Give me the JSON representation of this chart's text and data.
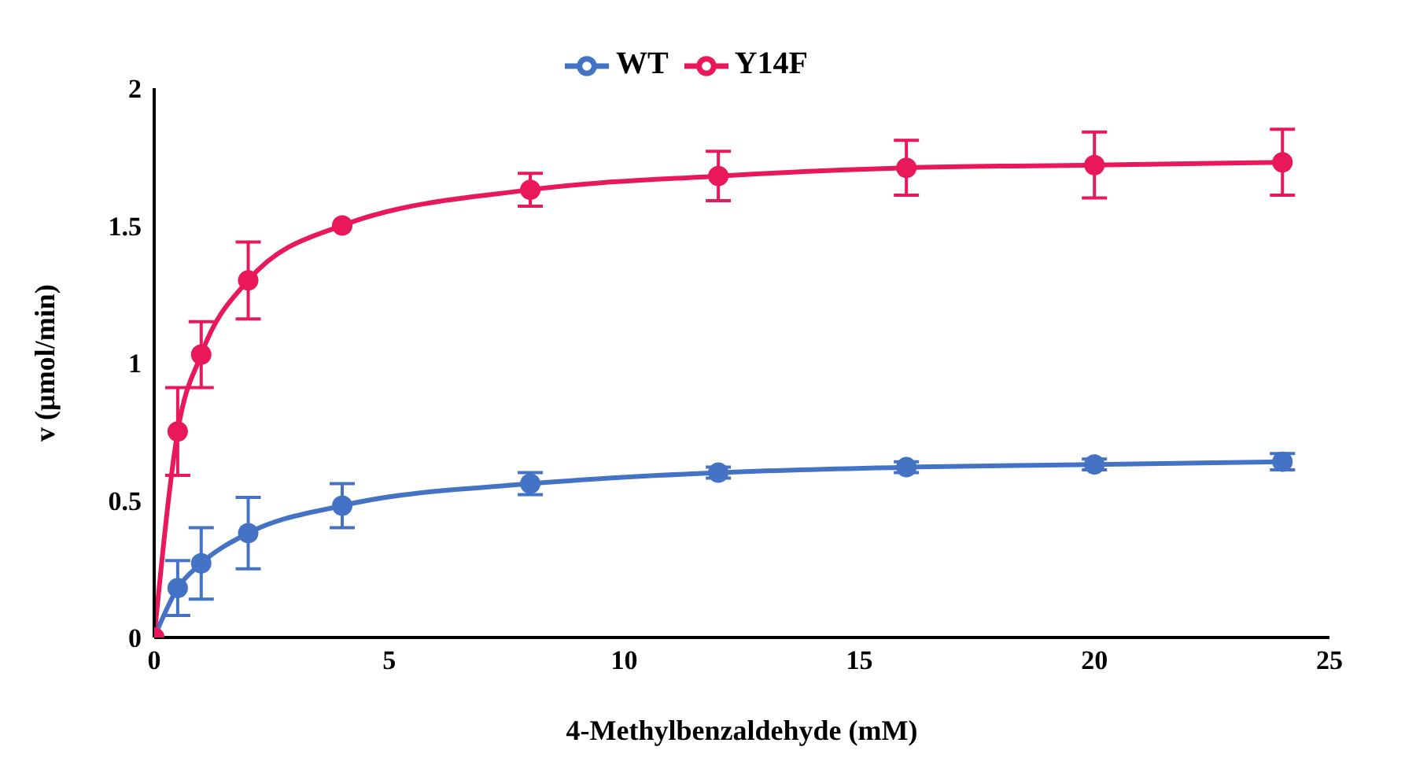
{
  "chart_data": {
    "type": "line",
    "xlabel": "4-Methylbenzaldehyde  (mM)",
    "ylabel": "v (µmol/min)",
    "x": [
      0,
      0.5,
      1,
      2,
      4,
      8,
      12,
      16,
      20,
      24
    ],
    "series": [
      {
        "name": "WT",
        "color": "#4472c4",
        "values": [
          0,
          0.18,
          0.27,
          0.38,
          0.48,
          0.56,
          0.6,
          0.62,
          0.63,
          0.64
        ],
        "errors": [
          null,
          0.1,
          0.13,
          0.13,
          0.08,
          0.04,
          0.02,
          0.02,
          0.02,
          0.03
        ]
      },
      {
        "name": "Y14F",
        "color": "#e8185a",
        "values": [
          0,
          0.75,
          1.03,
          1.3,
          1.5,
          1.63,
          1.68,
          1.71,
          1.72,
          1.73
        ],
        "errors": [
          null,
          0.16,
          0.12,
          0.14,
          null,
          0.06,
          0.09,
          0.1,
          0.12,
          0.12
        ]
      }
    ],
    "xlim": [
      0,
      25
    ],
    "xticks": [
      0,
      5,
      10,
      15,
      20,
      25
    ],
    "ylim": [
      0,
      2
    ],
    "yticks": [
      0,
      0.5,
      1,
      1.5,
      2
    ],
    "grid": false,
    "legend": "top",
    "marker": "circle",
    "line_style": "solid"
  }
}
